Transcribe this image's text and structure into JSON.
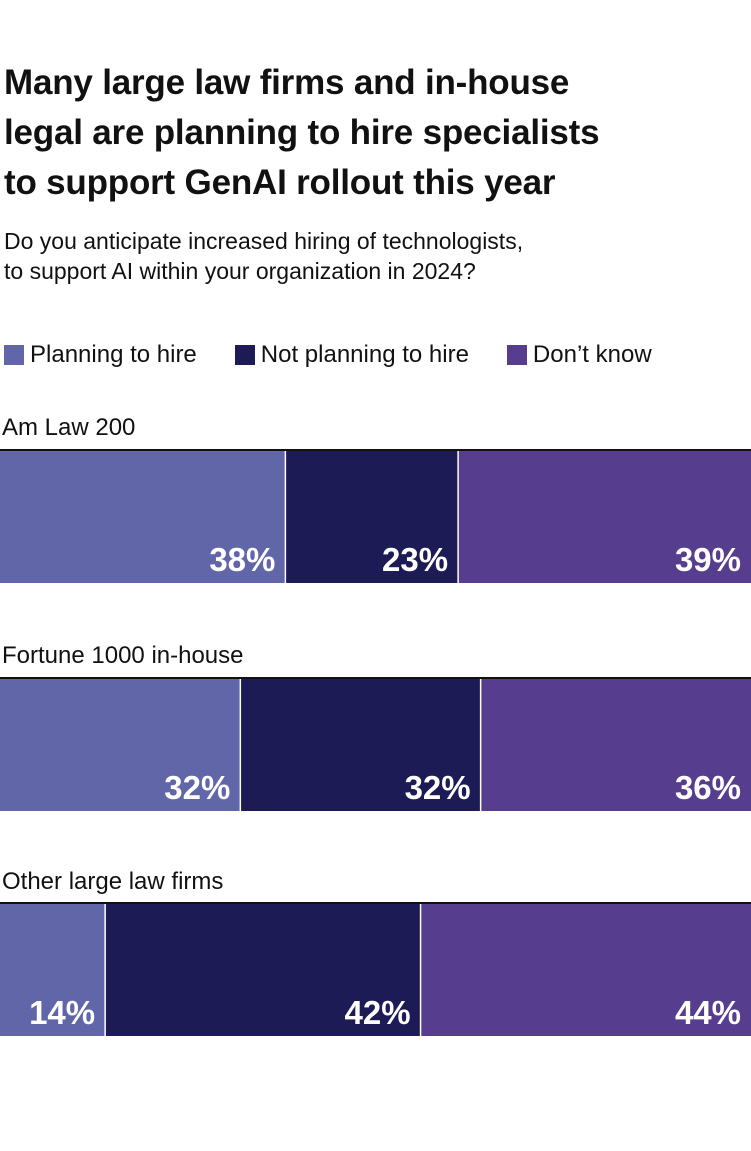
{
  "header": {
    "title_line1": "Many large law firms and in-house",
    "title_line2": "legal are planning to hire specialists",
    "title_line3": "to support GenAI rollout this year",
    "subtitle_line1": "Do you anticipate increased hiring of technologists,",
    "subtitle_line2": "to support AI within your organization in 2024?"
  },
  "colors": {
    "planning": "#6166a9",
    "not_planning": "#1d1b56",
    "dont_know": "#563d8e",
    "divider": "#111111"
  },
  "chart_data": {
    "type": "bar",
    "orientation": "horizontal",
    "stacked": true,
    "title": "Many large law firms and in-house legal are planning to hire specialists to support GenAI rollout this year",
    "subtitle": "Do you anticipate increased hiring of technologists, to support AI within your organization in 2024?",
    "unit": "%",
    "legend_position": "top-left",
    "xlim": [
      0,
      100
    ],
    "categories": [
      "Am Law 200",
      "Fortune 1000 in-house",
      "Other large law firms"
    ],
    "series": [
      {
        "name": "Planning to hire",
        "values": [
          38,
          32,
          14
        ]
      },
      {
        "name": "Not planning to hire",
        "values": [
          23,
          32,
          42
        ]
      },
      {
        "name": "Don’t know",
        "values": [
          39,
          36,
          44
        ]
      }
    ]
  }
}
